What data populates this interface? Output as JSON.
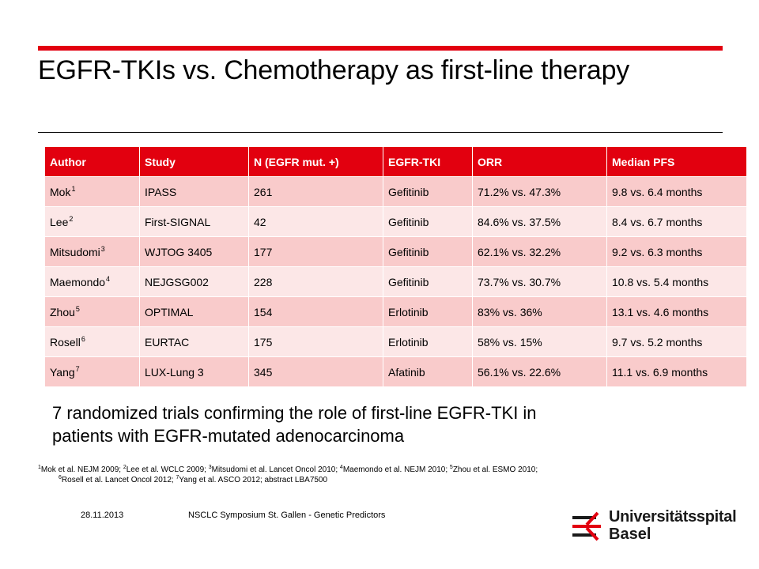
{
  "slide": {
    "title": "EGFR-TKIs vs. Chemotherapy as first-line therapy",
    "accent_color": "#e2000f"
  },
  "table": {
    "headers": [
      "Author",
      "Study",
      "N (EGFR mut. +)",
      "EGFR-TKI",
      "ORR",
      "Median PFS"
    ],
    "rows": [
      {
        "author": "Mok",
        "ref": "1",
        "study": "IPASS",
        "n": "261",
        "tki": "Gefitinib",
        "orr": "71.2% vs. 47.3%",
        "pfs": "9.8 vs. 6.4 months"
      },
      {
        "author": "Lee",
        "ref": "2",
        "study": "First-SIGNAL",
        "n": "42",
        "tki": "Gefitinib",
        "orr": "84.6% vs. 37.5%",
        "pfs": "8.4 vs. 6.7 months"
      },
      {
        "author": "Mitsudomi",
        "ref": "3",
        "study": "WJTOG 3405",
        "n": "177",
        "tki": "Gefitinib",
        "orr": "62.1% vs. 32.2%",
        "pfs": "9.2 vs. 6.3 months"
      },
      {
        "author": "Maemondo",
        "ref": "4",
        "study": "NEJGSG002",
        "n": "228",
        "tki": "Gefitinib",
        "orr": "73.7% vs. 30.7%",
        "pfs": "10.8 vs. 5.4 months"
      },
      {
        "author": "Zhou",
        "ref": "5",
        "study": "OPTIMAL",
        "n": "154",
        "tki": "Erlotinib",
        "orr": "83% vs. 36%",
        "pfs": "13.1 vs. 4.6 months"
      },
      {
        "author": "Rosell",
        "ref": "6",
        "study": "EURTAC",
        "n": "175",
        "tki": "Erlotinib",
        "orr": "58% vs. 15%",
        "pfs": "9.7 vs. 5.2 months"
      },
      {
        "author": "Yang",
        "ref": "7",
        "study": "LUX-Lung 3",
        "n": "345",
        "tki": "Afatinib",
        "orr": "56.1% vs. 22.6%",
        "pfs": "11.1 vs. 6.9 months"
      }
    ]
  },
  "summary": {
    "line1": "7 randomized trials confirming the role of first-line EGFR-TKI in",
    "line2": "patients with EGFR-mutated adenocarcinoma"
  },
  "footnote": {
    "line1": [
      {
        "sup": "1",
        "text": "Mok et al. NEJM 2009; "
      },
      {
        "sup": "2",
        "text": "Lee et al. WCLC 2009; "
      },
      {
        "sup": "3",
        "text": "Mitsudomi et al. Lancet Oncol 2010; "
      },
      {
        "sup": "4",
        "text": "Maemondo et al. NEJM 2010; "
      },
      {
        "sup": "5",
        "text": "Zhou et al. ESMO 2010;"
      }
    ],
    "line2": [
      {
        "sup": "6",
        "text": "Rosell et al. Lancet Oncol 2012; "
      },
      {
        "sup": "7",
        "text": "Yang et al. ASCO 2012; abstract LBA7500"
      }
    ]
  },
  "footer": {
    "date": "28.11.2013",
    "event": "NSCLC Symposium St. Gallen - Genetic Predictors"
  },
  "logo": {
    "name": "Universitätsspital",
    "city": "Basel",
    "icon": "usb-logo-icon",
    "mark_color": "#e2000f",
    "text_color": "#1a1a1a"
  }
}
